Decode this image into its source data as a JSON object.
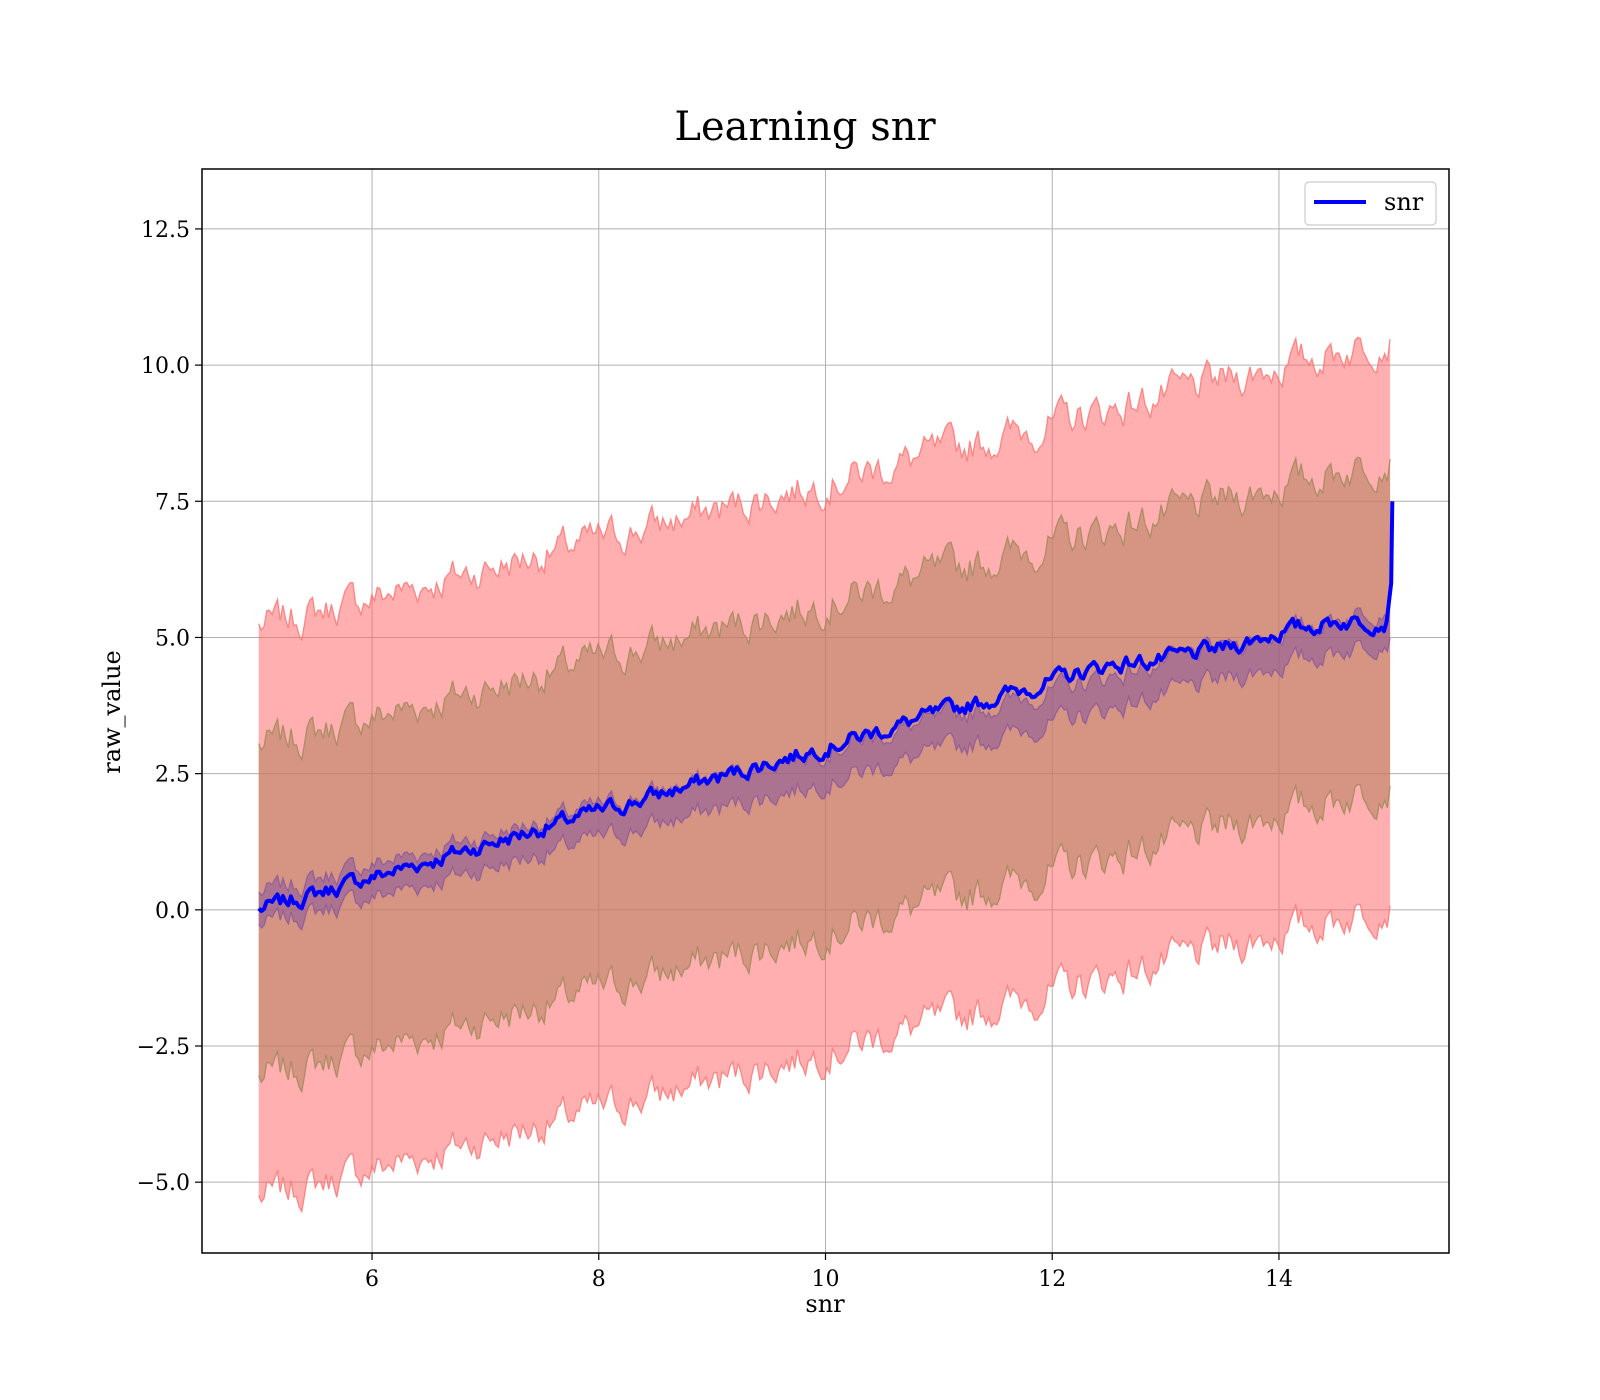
{
  "chart_data": {
    "type": "line",
    "title": "Learning snr",
    "xlabel": "snr",
    "ylabel": "raw_value",
    "xlim": [
      4.5,
      15.5
    ],
    "ylim": [
      -6.3,
      13.6
    ],
    "xticks": [
      6,
      8,
      10,
      12,
      14
    ],
    "xtick_labels": [
      "6",
      "8",
      "10",
      "12",
      "14"
    ],
    "yticks": [
      -5.0,
      -2.5,
      0.0,
      2.5,
      5.0,
      7.5,
      10.0,
      12.5
    ],
    "ytick_labels": [
      "−5.0",
      "−2.5",
      "0.0",
      "2.5",
      "5.0",
      "7.5",
      "10.0",
      "12.5"
    ],
    "grid": true,
    "legend": {
      "position": "top-right",
      "entries": [
        "snr"
      ]
    },
    "series": [
      {
        "name": "snr",
        "color": "#0000ff",
        "x": [
          5.0,
          5.5,
          6.0,
          6.5,
          7.0,
          7.5,
          8.0,
          8.5,
          9.0,
          9.5,
          10.0,
          10.5,
          11.0,
          11.5,
          12.0,
          12.5,
          13.0,
          13.5,
          14.0,
          14.5,
          14.95,
          15.0
        ],
        "y": [
          0.0,
          0.3,
          0.6,
          0.9,
          1.2,
          1.5,
          1.8,
          2.1,
          2.4,
          2.7,
          3.0,
          3.3,
          3.6,
          3.9,
          4.2,
          4.5,
          4.6,
          4.8,
          5.1,
          5.3,
          5.3,
          7.5
        ]
      }
    ],
    "bands": [
      {
        "label_shown": false,
        "color": "#ff6666",
        "lower_at_x5": -5.3,
        "upper_at_x5": 5.2,
        "lower_at_x15": 0.1,
        "upper_at_x15": 10.5
      },
      {
        "label_shown": false,
        "color": "#a0906a",
        "lower_at_x5": -3.1,
        "upper_at_x5": 3.0,
        "lower_at_x15": 2.3,
        "upper_at_x15": 8.3
      },
      {
        "label_shown": false,
        "color": "#7a4aa0",
        "lower_at_x5": -0.3,
        "upper_at_x5": 0.3,
        "lower_at_x15": 5.0,
        "upper_at_x15": 5.6
      }
    ],
    "colors": {
      "outer_band": "#ff6666",
      "inner_band": "#c8967a",
      "mean_line": "#0000ff",
      "grid": "#b0b0b0"
    }
  }
}
